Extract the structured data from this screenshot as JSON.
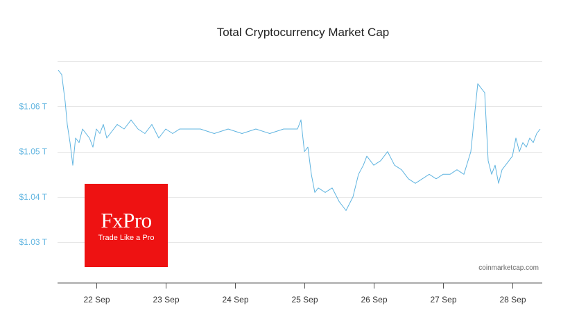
{
  "chart_data": {
    "type": "line",
    "title": "Total Cryptocurrency Market Cap",
    "xlabel": "",
    "ylabel": "",
    "x_ticks": [
      "22 Sep",
      "23 Sep",
      "24 Sep",
      "25 Sep",
      "26 Sep",
      "27 Sep",
      "28 Sep"
    ],
    "y_ticks": [
      "$1.03 T",
      "$1.04 T",
      "$1.05 T",
      "$1.06 T"
    ],
    "ylim": [
      1.021,
      1.07
    ],
    "grid": true,
    "source_credit": "coinmarketcap.com",
    "color": "#5fb4e0",
    "series": [
      {
        "x": [
          21.45,
          21.5,
          21.55,
          21.58,
          21.62,
          21.66,
          21.7,
          21.75,
          21.8,
          21.85,
          21.9,
          21.95,
          22.0,
          22.05,
          22.1,
          22.15,
          22.2,
          22.3,
          22.4,
          22.5,
          22.6,
          22.7,
          22.8,
          22.9,
          23.0,
          23.1,
          23.2,
          23.3,
          23.5,
          23.7,
          23.9,
          24.1,
          24.3,
          24.5,
          24.7,
          24.9,
          24.95,
          25.0,
          25.05,
          25.1,
          25.15,
          25.2,
          25.3,
          25.4,
          25.5,
          25.6,
          25.7,
          25.78,
          25.85,
          25.9,
          26.0,
          26.1,
          26.2,
          26.3,
          26.4,
          26.5,
          26.6,
          26.7,
          26.8,
          26.9,
          27.0,
          27.1,
          27.2,
          27.3,
          27.4,
          27.5,
          27.6,
          27.65,
          27.7,
          27.75,
          27.8,
          27.85,
          27.9,
          27.95,
          28.0,
          28.05,
          28.1,
          28.15,
          28.2,
          28.25,
          28.3,
          28.35,
          28.4
        ],
        "values": [
          1.068,
          1.067,
          1.061,
          1.056,
          1.052,
          1.047,
          1.053,
          1.052,
          1.055,
          1.054,
          1.053,
          1.051,
          1.055,
          1.054,
          1.056,
          1.053,
          1.054,
          1.056,
          1.055,
          1.057,
          1.055,
          1.054,
          1.056,
          1.053,
          1.055,
          1.054,
          1.055,
          1.055,
          1.055,
          1.054,
          1.055,
          1.054,
          1.055,
          1.054,
          1.055,
          1.055,
          1.057,
          1.05,
          1.051,
          1.045,
          1.041,
          1.042,
          1.041,
          1.042,
          1.039,
          1.037,
          1.04,
          1.045,
          1.047,
          1.049,
          1.047,
          1.048,
          1.05,
          1.047,
          1.046,
          1.044,
          1.043,
          1.044,
          1.045,
          1.044,
          1.045,
          1.045,
          1.046,
          1.045,
          1.05,
          1.065,
          1.063,
          1.048,
          1.045,
          1.047,
          1.043,
          1.046,
          1.047,
          1.048,
          1.049,
          1.053,
          1.05,
          1.052,
          1.051,
          1.053,
          1.052,
          1.054,
          1.055
        ]
      }
    ]
  },
  "watermark": {
    "name": "FxPro",
    "slogan": "Trade Like a Pro",
    "color": "#ee1212"
  }
}
